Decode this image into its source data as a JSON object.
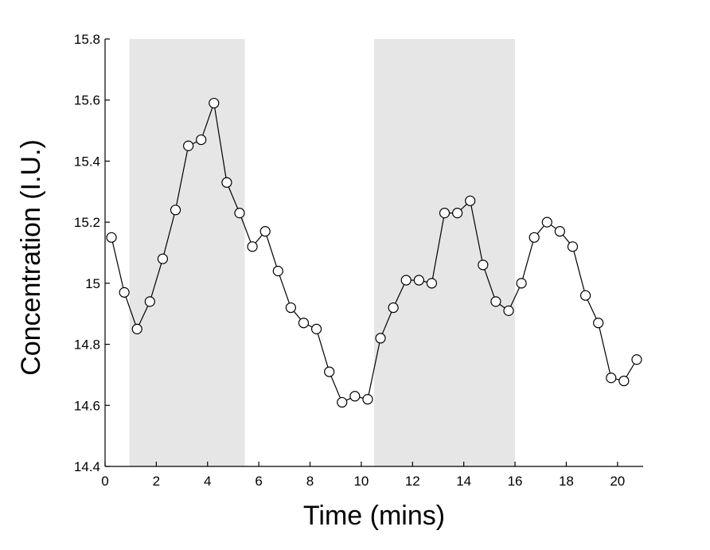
{
  "chart_data": {
    "type": "line",
    "title": "",
    "xlabel": "Time (mins)",
    "ylabel": "Concentration (I.U.)",
    "xlim": [
      0,
      21
    ],
    "ylim": [
      14.4,
      15.8
    ],
    "xticks": [
      0,
      2,
      4,
      6,
      8,
      10,
      12,
      14,
      16,
      18,
      20
    ],
    "xtick_labels": [
      "0",
      "2",
      "4",
      "6",
      "8",
      "10",
      "12",
      "14",
      "16",
      "18",
      "20"
    ],
    "yticks": [
      14.4,
      14.6,
      14.8,
      15.0,
      15.2,
      15.4,
      15.6,
      15.8
    ],
    "ytick_labels": [
      "14.4",
      "14.6",
      "14.8",
      "15",
      "15.2",
      "15.4",
      "15.6",
      "15.8"
    ],
    "grid": false,
    "marker": "open-circle",
    "shaded_regions": [
      {
        "x_start": 0.95,
        "x_end": 5.45
      },
      {
        "x_start": 10.5,
        "x_end": 16.0
      }
    ],
    "series": [
      {
        "x": [
          0.25,
          0.75,
          1.25,
          1.75,
          2.25,
          2.75,
          3.25,
          3.75,
          4.25,
          4.75,
          5.25,
          5.75,
          6.25,
          6.75,
          7.25,
          7.75,
          8.25,
          8.75,
          9.25,
          9.75,
          10.25,
          10.75,
          11.25,
          11.75,
          12.25,
          12.75,
          13.25,
          13.75,
          14.25,
          14.75,
          15.25,
          15.75,
          16.25,
          16.75,
          17.25,
          17.75,
          18.25,
          18.75,
          19.25,
          19.75,
          20.25,
          20.75
        ],
        "y": [
          15.15,
          14.97,
          14.85,
          14.94,
          15.08,
          15.24,
          15.45,
          15.47,
          15.59,
          15.33,
          15.23,
          15.12,
          15.17,
          15.04,
          14.92,
          14.87,
          14.85,
          14.71,
          14.61,
          14.63,
          14.62,
          14.82,
          14.92,
          15.01,
          15.01,
          15.0,
          15.23,
          15.23,
          15.27,
          15.06,
          14.94,
          14.91,
          15.0,
          15.15,
          15.2,
          15.17,
          15.12,
          14.96,
          14.87,
          14.69,
          14.68,
          14.75
        ]
      }
    ]
  }
}
